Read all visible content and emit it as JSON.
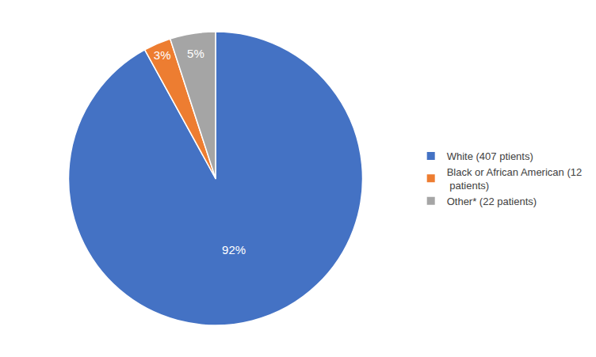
{
  "chart_data": {
    "type": "pie",
    "categories": [
      "White (407 ptients)",
      "Black or African American (12\n patients)",
      "Other* (22 patients)"
    ],
    "values": [
      92,
      3,
      5
    ],
    "value_labels": [
      "92%",
      "3%",
      "5%"
    ],
    "data_labels": true,
    "colors": [
      "#4472C4",
      "#ED7D31",
      "#A5A5A5"
    ],
    "legend": "right"
  }
}
